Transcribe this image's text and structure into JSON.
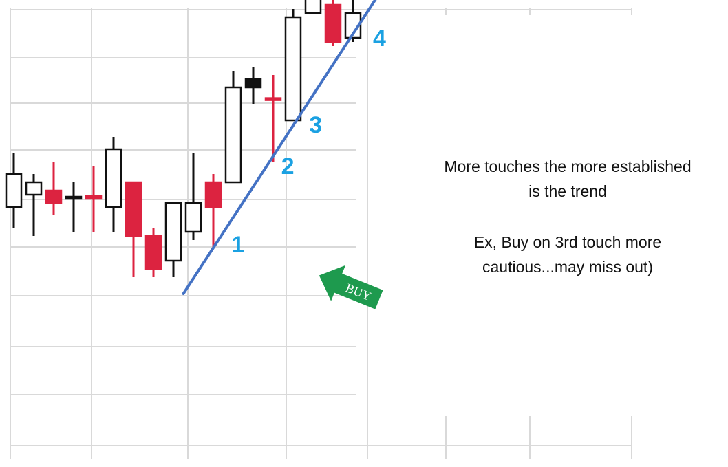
{
  "chart_data": {
    "type": "candlestick",
    "title": "",
    "xlabel": "",
    "ylabel": "",
    "grid": true,
    "candles": [
      {
        "x": 0,
        "open": 71,
        "close": 63,
        "high": 76,
        "low": 58,
        "color": "white"
      },
      {
        "x": 1,
        "open": 66,
        "close": 69,
        "high": 71,
        "low": 56,
        "color": "white"
      },
      {
        "x": 2,
        "open": 64,
        "close": 67,
        "high": 74,
        "low": 61,
        "color": "red"
      },
      {
        "x": 3,
        "open": 65,
        "close": 65.5,
        "high": 69,
        "low": 57,
        "color": "black"
      },
      {
        "x": 4,
        "open": 65,
        "close": 65.7,
        "high": 73,
        "low": 57,
        "color": "red"
      },
      {
        "x": 5,
        "open": 63,
        "close": 77,
        "high": 80,
        "low": 57,
        "color": "white"
      },
      {
        "x": 6,
        "open": 69,
        "close": 56,
        "high": 69,
        "low": 46,
        "color": "red"
      },
      {
        "x": 7,
        "open": 56,
        "close": 48,
        "high": 58,
        "low": 46,
        "color": "red"
      },
      {
        "x": 8,
        "open": 50,
        "close": 64,
        "high": 64,
        "low": 46,
        "color": "white"
      },
      {
        "x": 9,
        "open": 57,
        "close": 64,
        "high": 76,
        "low": 55,
        "color": "white"
      },
      {
        "x": 10,
        "open": 69,
        "close": 63,
        "high": 71,
        "low": 53,
        "color": "red"
      },
      {
        "x": 11,
        "open": 69,
        "close": 92,
        "high": 96,
        "low": 69,
        "color": "white"
      },
      {
        "x": 12,
        "open": 92,
        "close": 94,
        "high": 97,
        "low": 88,
        "color": "black"
      },
      {
        "x": 13,
        "open": 89,
        "close": 89.4,
        "high": 95,
        "low": 74,
        "color": "red"
      },
      {
        "x": 14,
        "open": 84,
        "close": 109,
        "high": 111,
        "low": 84,
        "color": "white"
      },
      {
        "x": 15,
        "open": 110,
        "close": 115,
        "high": 120,
        "low": 110,
        "color": "white"
      },
      {
        "x": 16,
        "open": 112,
        "close": 103,
        "high": 114,
        "low": 102,
        "color": "red"
      },
      {
        "x": 17,
        "open": 104,
        "close": 110,
        "high": 114,
        "low": 103,
        "color": "white"
      }
    ],
    "trendline": {
      "from": [
        8.5,
        42
      ],
      "to": [
        22,
        142
      ],
      "color": "#4472C4"
    },
    "touch_labels": [
      {
        "text": "1",
        "x": 10.9,
        "y": 52
      },
      {
        "text": "2",
        "x": 13.4,
        "y": 71
      },
      {
        "text": "3",
        "x": 14.8,
        "y": 81
      },
      {
        "text": "4",
        "x": 18.0,
        "y": 102
      }
    ],
    "buy_arrow": {
      "label": "BUY",
      "color": "#1E9A4E"
    },
    "colors": {
      "bearish": "#DC2340",
      "bullish_fill": "#ffffff",
      "outline": "#111111",
      "grid": "#d9d9d9",
      "touch_label": "#1BA1E2"
    }
  },
  "notes": {
    "line1": "More touches the more established",
    "line2": "is the trend",
    "line3": "Ex,  Buy on 3rd touch more",
    "line4": "cautious...may miss out)"
  }
}
